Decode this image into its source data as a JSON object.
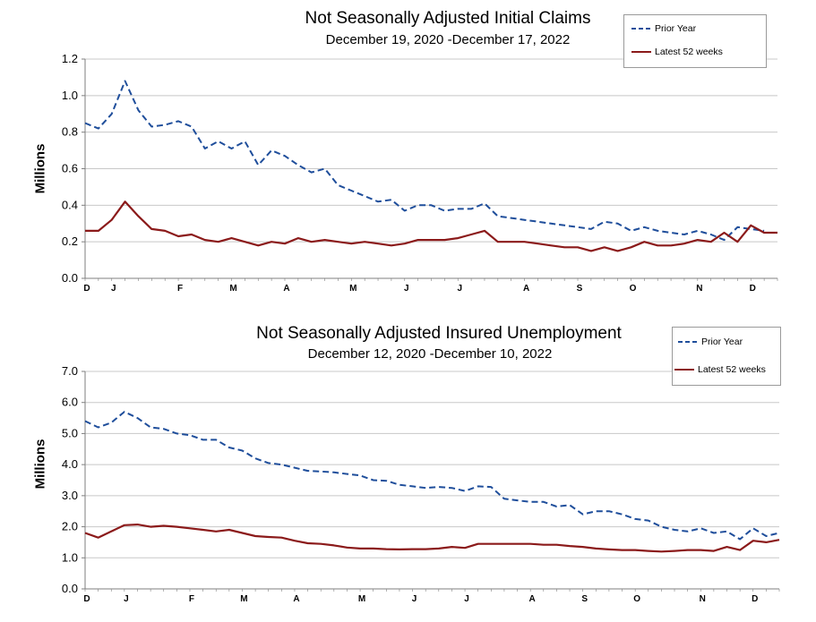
{
  "colors": {
    "prior": "#1F4E9B",
    "latest": "#8B1A1A",
    "grid": "#c8c8c8",
    "axis": "#7f7f7f"
  },
  "chart_data": [
    {
      "type": "line",
      "title": "Not Seasonally Adjusted Initial Claims",
      "subtitle": "December 19, 2020 -December 17, 2022",
      "ylabel": "Millions",
      "ylim": [
        0,
        1.2
      ],
      "yticks": [
        "0.0",
        "0.2",
        "0.4",
        "0.6",
        "0.8",
        "1.0",
        "1.2"
      ],
      "month_labels": [
        "D",
        "J",
        "F",
        "M",
        "A",
        "M",
        "J",
        "J",
        "A",
        "S",
        "O",
        "N",
        "D"
      ],
      "month_weeks": [
        0,
        2,
        7,
        11,
        15,
        20,
        24,
        28,
        33,
        37,
        41,
        46,
        50
      ],
      "grid": true,
      "legend_position": "top-right",
      "series": [
        {
          "name": "Prior Year",
          "style": "dashed",
          "values": [
            0.85,
            0.82,
            0.9,
            1.08,
            0.92,
            0.83,
            0.84,
            0.86,
            0.83,
            0.71,
            0.75,
            0.71,
            0.75,
            0.62,
            0.7,
            0.67,
            0.62,
            0.58,
            0.6,
            0.51,
            0.48,
            0.45,
            0.42,
            0.43,
            0.37,
            0.4,
            0.4,
            0.37,
            0.38,
            0.38,
            0.41,
            0.34,
            0.33,
            0.32,
            0.31,
            0.3,
            0.29,
            0.28,
            0.27,
            0.31,
            0.3,
            0.26,
            0.28,
            0.26,
            0.25,
            0.24,
            0.26,
            0.24,
            0.21,
            0.28,
            0.27,
            0.26
          ]
        },
        {
          "name": "Latest 52 weeks",
          "style": "solid",
          "values": [
            0.26,
            0.26,
            0.32,
            0.42,
            0.34,
            0.27,
            0.26,
            0.23,
            0.24,
            0.21,
            0.2,
            0.22,
            0.2,
            0.18,
            0.2,
            0.19,
            0.22,
            0.2,
            0.21,
            0.2,
            0.19,
            0.2,
            0.19,
            0.18,
            0.19,
            0.21,
            0.21,
            0.21,
            0.22,
            0.24,
            0.26,
            0.2,
            0.2,
            0.2,
            0.19,
            0.18,
            0.17,
            0.17,
            0.15,
            0.17,
            0.15,
            0.17,
            0.2,
            0.18,
            0.18,
            0.19,
            0.21,
            0.2,
            0.25,
            0.2,
            0.29,
            0.25,
            0.25
          ]
        }
      ]
    },
    {
      "type": "line",
      "title": "Not Seasonally Adjusted Insured Unemployment",
      "subtitle": "December 12, 2020 -December 10, 2022",
      "ylabel": "Millions",
      "ylim": [
        0,
        7
      ],
      "yticks": [
        "0.0",
        "1.0",
        "2.0",
        "3.0",
        "4.0",
        "5.0",
        "6.0",
        "7.0"
      ],
      "month_labels": [
        "D",
        "J",
        "F",
        "M",
        "A",
        "M",
        "J",
        "J",
        "A",
        "S",
        "O",
        "N",
        "D"
      ],
      "month_weeks": [
        0,
        3,
        8,
        12,
        16,
        21,
        25,
        29,
        34,
        38,
        42,
        47,
        51
      ],
      "grid": true,
      "legend_position": "top-right",
      "series": [
        {
          "name": "Prior Year",
          "style": "dashed",
          "values": [
            5.4,
            5.2,
            5.35,
            5.7,
            5.5,
            5.2,
            5.15,
            5.0,
            4.95,
            4.8,
            4.8,
            4.55,
            4.45,
            4.2,
            4.05,
            4.0,
            3.9,
            3.8,
            3.78,
            3.75,
            3.7,
            3.65,
            3.5,
            3.48,
            3.35,
            3.3,
            3.25,
            3.28,
            3.25,
            3.15,
            3.3,
            3.28,
            2.9,
            2.85,
            2.8,
            2.8,
            2.65,
            2.7,
            2.4,
            2.5,
            2.5,
            2.4,
            2.25,
            2.2,
            2.0,
            1.9,
            1.85,
            1.95,
            1.8,
            1.85,
            1.6,
            1.95,
            1.7,
            1.8
          ]
        },
        {
          "name": "Latest 52 weeks",
          "style": "solid",
          "values": [
            1.8,
            1.65,
            1.85,
            2.05,
            2.07,
            2.0,
            2.03,
            2.0,
            1.95,
            1.9,
            1.85,
            1.9,
            1.8,
            1.7,
            1.67,
            1.65,
            1.55,
            1.47,
            1.45,
            1.4,
            1.33,
            1.3,
            1.3,
            1.28,
            1.27,
            1.28,
            1.28,
            1.3,
            1.35,
            1.32,
            1.45,
            1.45,
            1.45,
            1.45,
            1.45,
            1.42,
            1.42,
            1.38,
            1.35,
            1.3,
            1.27,
            1.25,
            1.25,
            1.22,
            1.2,
            1.22,
            1.25,
            1.25,
            1.22,
            1.35,
            1.25,
            1.55,
            1.5,
            1.58
          ]
        }
      ]
    }
  ]
}
